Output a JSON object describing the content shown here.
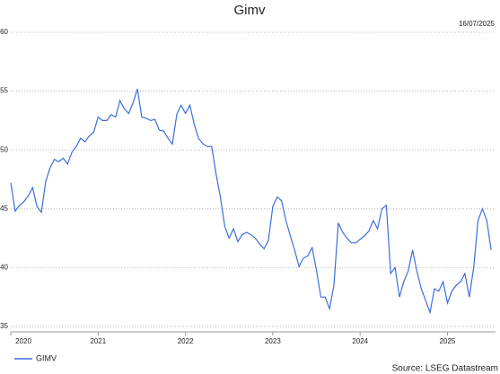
{
  "chart_data": {
    "type": "line",
    "title": "Gimv",
    "annotation": "16/07/2025",
    "source": "Source: LSEG Datastream",
    "x": [
      2020,
      2020.05,
      2020.1,
      2020.15,
      2020.2,
      2020.25,
      2020.3,
      2020.35,
      2020.4,
      2020.45,
      2020.5,
      2020.55,
      2020.6,
      2020.65,
      2020.7,
      2020.75,
      2020.8,
      2020.85,
      2020.9,
      2020.95,
      2021,
      2021.05,
      2021.1,
      2021.15,
      2021.2,
      2021.25,
      2021.3,
      2021.35,
      2021.4,
      2021.45,
      2021.5,
      2021.55,
      2021.6,
      2021.65,
      2021.7,
      2021.75,
      2021.8,
      2021.85,
      2021.9,
      2021.95,
      2022,
      2022.05,
      2022.1,
      2022.15,
      2022.2,
      2022.25,
      2022.3,
      2022.35,
      2022.4,
      2022.45,
      2022.5,
      2022.55,
      2022.6,
      2022.65,
      2022.7,
      2022.75,
      2022.8,
      2022.85,
      2022.9,
      2022.95,
      2023,
      2023.05,
      2023.1,
      2023.15,
      2023.2,
      2023.25,
      2023.3,
      2023.35,
      2023.4,
      2023.45,
      2023.5,
      2023.55,
      2023.6,
      2023.65,
      2023.7,
      2023.75,
      2023.8,
      2023.85,
      2023.9,
      2023.95,
      2024,
      2024.05,
      2024.1,
      2024.15,
      2024.2,
      2024.25,
      2024.3,
      2024.35,
      2024.4,
      2024.45,
      2024.5,
      2024.55,
      2024.6,
      2024.65,
      2024.7,
      2024.75,
      2024.8,
      2024.85,
      2024.9,
      2024.95,
      2025,
      2025.05,
      2025.1,
      2025.15,
      2025.2,
      2025.25,
      2025.3,
      2025.35,
      2025.4,
      2025.45,
      2025.5
    ],
    "series": [
      {
        "name": "GIMV",
        "color": "#3b6fdc",
        "values": [
          47.2,
          44.8,
          45.3,
          45.6,
          46.1,
          46.8,
          45.2,
          44.7,
          47.3,
          48.5,
          49.2,
          49,
          49.3,
          48.8,
          49.8,
          50.3,
          51,
          50.7,
          51.2,
          51.5,
          52.8,
          52.5,
          52.5,
          53,
          52.8,
          54.2,
          53.5,
          53.1,
          54,
          55.2,
          52.8,
          52.7,
          52.5,
          52.6,
          51.7,
          51.6,
          51,
          50.5,
          53,
          53.8,
          53.1,
          53.8,
          52.2,
          51,
          50.5,
          50.3,
          50.3,
          48,
          46,
          43.5,
          42.5,
          43.3,
          42.2,
          42.8,
          43,
          42.8,
          42.5,
          42,
          41.6,
          42.3,
          45.2,
          46,
          45.7,
          44,
          42.7,
          41.5,
          40.1,
          40.8,
          41,
          41.7,
          39.8,
          37.5,
          37.5,
          36.5,
          38.5,
          43.8,
          43,
          42.5,
          42.1,
          42.1,
          42.4,
          42.7,
          43.1,
          44,
          43.3,
          45,
          45.3,
          39.5,
          40,
          37.5,
          38.8,
          39.7,
          41.5,
          39.7,
          38.2,
          37.2,
          36.2,
          38.2,
          38,
          38.8,
          37,
          38,
          38.5,
          38.8,
          39.5,
          37.5,
          40,
          44,
          45,
          44,
          41.5
        ]
      }
    ],
    "xlim": [
      2020,
      2025.55
    ],
    "xticks": [
      2020,
      2021,
      2022,
      2023,
      2024,
      2025
    ],
    "ylim": [
      35,
      60
    ],
    "yticks": [
      35,
      40,
      45,
      50,
      55,
      60
    ],
    "grid": true,
    "legend": "bottom-left"
  }
}
